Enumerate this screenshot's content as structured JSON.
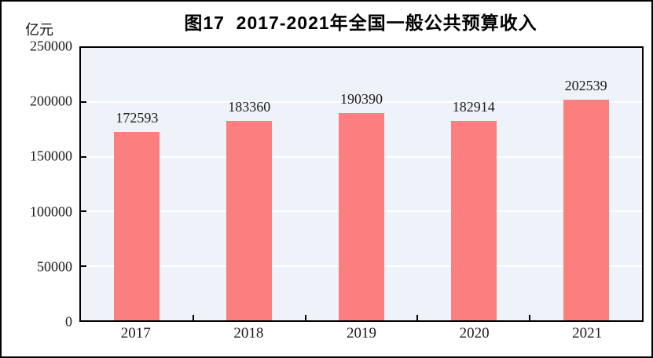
{
  "title": "图17  2017-2021年全国一般公共预算收入",
  "unit_label": "亿元",
  "chart_data": {
    "type": "bar",
    "title": "图17  2017-2021年全国一般公共预算收入",
    "categories": [
      "2017",
      "2018",
      "2019",
      "2020",
      "2021"
    ],
    "values": [
      172593,
      183360,
      190390,
      182914,
      202539
    ],
    "xlabel": "",
    "ylabel": "亿元",
    "ylim": [
      0,
      250000
    ],
    "yticks": [
      0,
      50000,
      100000,
      150000,
      200000,
      250000
    ],
    "grid": true,
    "legend_position": "none",
    "colors": {
      "bar_fill": "#fc7f7f",
      "plot_background": "#edf3f8",
      "gridline": "#ffffff",
      "axis_border": "#000000",
      "text": "#1a1a1a"
    }
  }
}
